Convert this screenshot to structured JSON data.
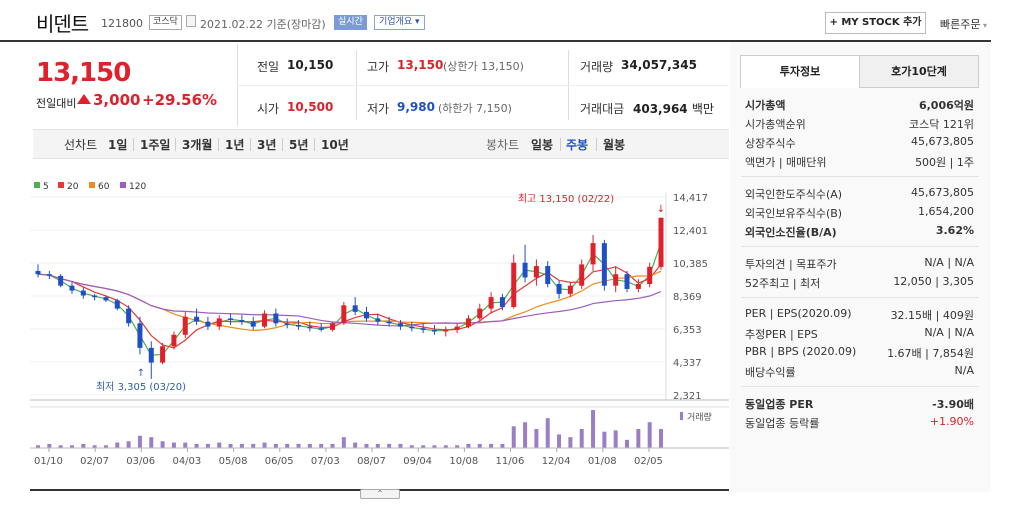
{
  "header": {
    "name": "비덴트",
    "code": "121800",
    "market": "코스닥",
    "date": "2021.02.22",
    "basis": "기준(장마감)",
    "realtime": "실시간",
    "overview": "기업개요",
    "mystock": "+ MY STOCK 추가",
    "quick": "빠른주문"
  },
  "price": {
    "current": "13,150",
    "diff_label": "전일대비",
    "diff": "3,000",
    "pct": "+29.56%"
  },
  "quote": {
    "prev_label": "전일",
    "prev": "10,150",
    "high_label": "고가",
    "high": "13,150",
    "upper": "(상한가 13,150)",
    "vol_label": "거래량",
    "vol": "34,057,345",
    "open_label": "시가",
    "open": "10,500",
    "low_label": "저가",
    "low": "9,980",
    "lower": "(하한가 7,150)",
    "amt_label": "거래대금",
    "amt": "403,964",
    "amt_unit": "백만"
  },
  "tabs": {
    "label": "선차트",
    "items": [
      "1일",
      "1주일",
      "3개월",
      "1년",
      "3년",
      "5년",
      "10년"
    ],
    "candle_label": "봉차트",
    "candle": [
      "일봉",
      "주봉",
      "월봉"
    ]
  },
  "chart_data": {
    "type": "candlestick",
    "ma_legend": [
      {
        "name": "5",
        "color": "#4caf50"
      },
      {
        "name": "20",
        "color": "#e53935"
      },
      {
        "name": "60",
        "color": "#ef8c1a"
      },
      {
        "name": "120",
        "color": "#9c5cc4"
      }
    ],
    "y_ticks": [
      "14,417",
      "12,401",
      "10,385",
      "8,369",
      "6,353",
      "4,337",
      "2,321"
    ],
    "x_ticks": [
      "01/10",
      "02/07",
      "03/06",
      "04/03",
      "05/08",
      "06/05",
      "07/03",
      "08/07",
      "09/04",
      "10/08",
      "11/06",
      "12/04",
      "01/08",
      "02/05"
    ],
    "max_label": "최고 13,150 (02/22)",
    "min_label": "최저 3,305 (03/20)",
    "volume_label": "거래량",
    "candles": [
      [
        9900,
        10300,
        9500,
        9700
      ],
      [
        9700,
        9900,
        9400,
        9600
      ],
      [
        9600,
        9700,
        8900,
        9000
      ],
      [
        9000,
        9200,
        8500,
        8700
      ],
      [
        8700,
        8900,
        8200,
        8400
      ],
      [
        8400,
        8500,
        8100,
        8300
      ],
      [
        8300,
        8400,
        8000,
        8100
      ],
      [
        8100,
        8200,
        7500,
        7600
      ],
      [
        7600,
        7800,
        6500,
        6700
      ],
      [
        6700,
        7100,
        4800,
        5200
      ],
      [
        5200,
        5600,
        3305,
        4300
      ],
      [
        4300,
        5500,
        4200,
        5300
      ],
      [
        5300,
        6200,
        5100,
        6000
      ],
      [
        6000,
        7400,
        5800,
        7100
      ],
      [
        7100,
        7600,
        6600,
        6800
      ],
      [
        6800,
        7100,
        6300,
        6500
      ],
      [
        6500,
        7200,
        6300,
        7000
      ],
      [
        7000,
        7300,
        6600,
        6900
      ],
      [
        6900,
        7200,
        6600,
        6800
      ],
      [
        6800,
        7100,
        6300,
        6500
      ],
      [
        6500,
        7500,
        6400,
        7300
      ],
      [
        7300,
        7600,
        6500,
        6700
      ],
      [
        6700,
        7000,
        6400,
        6600
      ],
      [
        6600,
        6900,
        6300,
        6500
      ],
      [
        6500,
        6800,
        6200,
        6400
      ],
      [
        6400,
        6700,
        6200,
        6300
      ],
      [
        6300,
        6800,
        6200,
        6700
      ],
      [
        6700,
        8000,
        6600,
        7800
      ],
      [
        7800,
        8300,
        7200,
        7400
      ],
      [
        7400,
        7700,
        6800,
        7000
      ],
      [
        7000,
        7300,
        6600,
        6800
      ],
      [
        6800,
        7100,
        6500,
        6700
      ],
      [
        6700,
        6900,
        6300,
        6500
      ],
      [
        6500,
        6800,
        6200,
        6400
      ],
      [
        6400,
        6700,
        6100,
        6300
      ],
      [
        6300,
        6600,
        6000,
        6200
      ],
      [
        6200,
        6500,
        5900,
        6300
      ],
      [
        6300,
        6700,
        6100,
        6500
      ],
      [
        6500,
        7200,
        6400,
        7000
      ],
      [
        7000,
        7900,
        6800,
        7600
      ],
      [
        7600,
        8600,
        7300,
        8300
      ],
      [
        8300,
        8500,
        7500,
        7700
      ],
      [
        7700,
        10900,
        7600,
        10400
      ],
      [
        10400,
        11500,
        9200,
        9500
      ],
      [
        9500,
        10600,
        9000,
        10200
      ],
      [
        10200,
        10500,
        8900,
        9100
      ],
      [
        9100,
        9300,
        8200,
        8500
      ],
      [
        8500,
        9200,
        8300,
        9000
      ],
      [
        9000,
        10600,
        8800,
        10300
      ],
      [
        10300,
        12100,
        9900,
        11600
      ],
      [
        11600,
        11800,
        8700,
        9000
      ],
      [
        9000,
        10200,
        8600,
        9700
      ],
      [
        9700,
        9900,
        8600,
        8800
      ],
      [
        8800,
        9400,
        8600,
        9100
      ],
      [
        9100,
        10400,
        8900,
        10150
      ],
      [
        10150,
        13150,
        9980,
        13150
      ]
    ],
    "volumes": [
      2,
      3,
      2,
      2,
      3,
      2,
      2,
      4,
      5,
      9,
      8,
      5,
      4,
      4,
      3,
      3,
      4,
      3,
      3,
      3,
      4,
      3,
      3,
      3,
      3,
      3,
      3,
      8,
      4,
      3,
      3,
      3,
      3,
      2,
      2,
      2,
      2,
      2,
      3,
      3,
      3,
      3,
      16,
      19,
      14,
      22,
      10,
      8,
      14,
      28,
      12,
      13,
      6,
      14,
      19,
      14
    ]
  },
  "info": {
    "tab1": "투자정보",
    "tab2": "호가10단계",
    "rows1": [
      [
        "시가총액",
        "6,006억원"
      ],
      [
        "시가총액순위",
        "코스닥 121위"
      ],
      [
        "상장주식수",
        "45,673,805"
      ],
      [
        "액면가 | 매매단위",
        "500원 | 1주"
      ]
    ],
    "rows2": [
      [
        "외국인한도주식수(A)",
        "45,673,805"
      ],
      [
        "외국인보유주식수(B)",
        "1,654,200"
      ],
      [
        "외국인소진율(B/A)",
        "3.62%"
      ]
    ],
    "rows3": [
      [
        "투자의견 | 목표주가",
        "N/A | N/A"
      ],
      [
        "52주최고 | 최저",
        "12,050 | 3,305"
      ]
    ],
    "rows4": [
      [
        "PER | EPS(2020.09)",
        "32.15배 | 409원"
      ],
      [
        "추정PER | EPS",
        "N/A | N/A"
      ],
      [
        "PBR | BPS (2020.09)",
        "1.67배 | 7,854원"
      ],
      [
        "배당수익률",
        "N/A"
      ]
    ],
    "rows5": [
      [
        "동일업종 PER",
        "-3.90배"
      ],
      [
        "동일업종 등락률",
        "+1.90%"
      ]
    ]
  }
}
